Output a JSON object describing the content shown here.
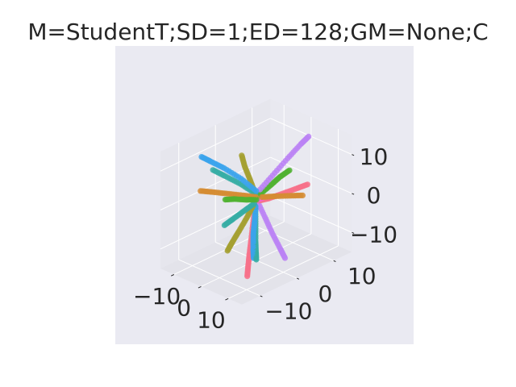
{
  "chart_data": {
    "type": "scatter",
    "projection": "3d",
    "title": "M=StudentT;SD=1;ED=128;GM=None;C",
    "xlabel": "",
    "ylabel": "",
    "zlabel": "",
    "xlim": [
      -15,
      15
    ],
    "ylim": [
      -15,
      15
    ],
    "zlim": [
      -15,
      15
    ],
    "xticks": [
      "−10",
      "0",
      "10"
    ],
    "yticks": [
      "−10",
      "0",
      "10"
    ],
    "zticks": [
      "−10",
      "0",
      "10"
    ],
    "grid": true,
    "legend": "none",
    "colors": {
      "pane": "#eaeaf2",
      "grid": "#ffffff",
      "text": "#262626"
    },
    "series": [
      {
        "color": "#f77189",
        "points": [
          [
            0.4,
            -0.4,
            1.2
          ],
          [
            3.0,
            -3.0,
            -2.5
          ],
          [
            5.2,
            -5.2,
            -5.6
          ],
          [
            6.4,
            -6.6,
            -8.6
          ],
          [
            7.3,
            -7.6,
            -11.0
          ],
          [
            7.8,
            -8.2,
            -13.0
          ]
        ]
      },
      {
        "color": "#f77189",
        "points": [
          [
            1.0,
            0.2,
            0.5
          ],
          [
            3.5,
            1.0,
            1.5
          ],
          [
            6.5,
            2.5,
            3.0
          ],
          [
            9.5,
            4.2,
            4.5
          ],
          [
            11.5,
            5.5,
            5.5
          ]
        ]
      },
      {
        "color": "#d58c32",
        "points": [
          [
            -0.3,
            0.2,
            1.0
          ],
          [
            -3.5,
            -1.0,
            1.0
          ],
          [
            -7.5,
            -2.5,
            0.9
          ],
          [
            -11.0,
            -3.8,
            0.8
          ],
          [
            -14.0,
            -4.8,
            0.6
          ]
        ]
      },
      {
        "color": "#d58c32",
        "points": [
          [
            0.5,
            1.2,
            0.8
          ],
          [
            2.5,
            3.0,
            0.8
          ],
          [
            5.0,
            5.5,
            0.6
          ],
          [
            7.0,
            7.5,
            0.4
          ]
        ]
      },
      {
        "color": "#a4a031",
        "points": [
          [
            -0.3,
            -0.2,
            2.5
          ],
          [
            -1.0,
            -1.0,
            6.0
          ],
          [
            -1.5,
            -2.0,
            9.5
          ],
          [
            -1.8,
            -2.6,
            12.5
          ]
        ]
      },
      {
        "color": "#a4a031",
        "points": [
          [
            -0.5,
            -0.5,
            -1.0
          ],
          [
            -1.5,
            -1.5,
            -4.0
          ],
          [
            -2.5,
            -2.8,
            -7.0
          ],
          [
            -3.3,
            -4.0,
            -9.5
          ],
          [
            -3.8,
            -5.0,
            -11.5
          ]
        ]
      },
      {
        "color": "#50b131",
        "points": [
          [
            -0.3,
            0.3,
            0.3
          ],
          [
            -3.0,
            -0.5,
            -0.2
          ],
          [
            -6.0,
            -1.5,
            -0.5
          ],
          [
            -8.0,
            -2.5,
            -0.8
          ]
        ]
      },
      {
        "color": "#50b131",
        "points": [
          [
            0.3,
            0.4,
            1.5
          ],
          [
            2.5,
            2.0,
            4.0
          ],
          [
            4.0,
            3.5,
            6.0
          ],
          [
            5.5,
            5.0,
            7.5
          ]
        ]
      },
      {
        "color": "#36ada4",
        "points": [
          [
            -0.3,
            0.0,
            2.0
          ],
          [
            -3.0,
            -2.0,
            4.5
          ],
          [
            -6.0,
            -4.0,
            6.5
          ],
          [
            -8.5,
            -5.5,
            8.0
          ]
        ]
      },
      {
        "color": "#36ada4",
        "points": [
          [
            0.3,
            -0.4,
            -1.0
          ],
          [
            2.5,
            -2.0,
            -4.0
          ],
          [
            4.5,
            -3.5,
            -7.0
          ],
          [
            6.0,
            -4.5,
            -9.0
          ],
          [
            6.8,
            -5.0,
            -10.5
          ]
        ]
      },
      {
        "color": "#36ada4",
        "points": [
          [
            -0.4,
            -0.2,
            -0.5
          ],
          [
            -2.5,
            -1.5,
            -2.5
          ],
          [
            -4.5,
            -3.0,
            -4.5
          ],
          [
            -6.0,
            -4.2,
            -6.0
          ]
        ]
      },
      {
        "color": "#3ba3ec",
        "points": [
          [
            -0.4,
            0.3,
            2.5
          ],
          [
            -3.5,
            -1.5,
            5.5
          ],
          [
            -7.0,
            -3.5,
            8.0
          ],
          [
            -10.0,
            -5.0,
            9.5
          ],
          [
            -12.0,
            -6.0,
            10.5
          ]
        ]
      },
      {
        "color": "#3ba3ec",
        "points": [
          [
            0.2,
            -0.3,
            -1.0
          ],
          [
            1.5,
            -1.5,
            -3.5
          ],
          [
            3.0,
            -3.0,
            -6.0
          ],
          [
            5.0,
            -4.5,
            -8.5
          ],
          [
            6.5,
            -5.5,
            -10.0
          ]
        ]
      },
      {
        "color": "#bb83f4",
        "points": [
          [
            0.3,
            0.3,
            2.5
          ],
          [
            2.0,
            3.0,
            6.0
          ],
          [
            3.5,
            6.0,
            9.5
          ],
          [
            5.0,
            8.5,
            12.5
          ],
          [
            5.8,
            10.0,
            14.0
          ]
        ]
      },
      {
        "color": "#bb83f4",
        "points": [
          [
            0.5,
            -0.3,
            1.0
          ],
          [
            4.5,
            -1.0,
            -2.0
          ],
          [
            8.0,
            -1.5,
            -5.0
          ],
          [
            11.5,
            -2.0,
            -7.5
          ],
          [
            14.0,
            -2.5,
            -9.0
          ]
        ]
      },
      {
        "color": "#f565cc",
        "points": [
          [
            0.0,
            0.0,
            1.2
          ],
          [
            0.8,
            0.4,
            1.2
          ],
          [
            1.2,
            0.8,
            1.0
          ],
          [
            0.4,
            -0.8,
            0.6
          ]
        ]
      }
    ]
  }
}
